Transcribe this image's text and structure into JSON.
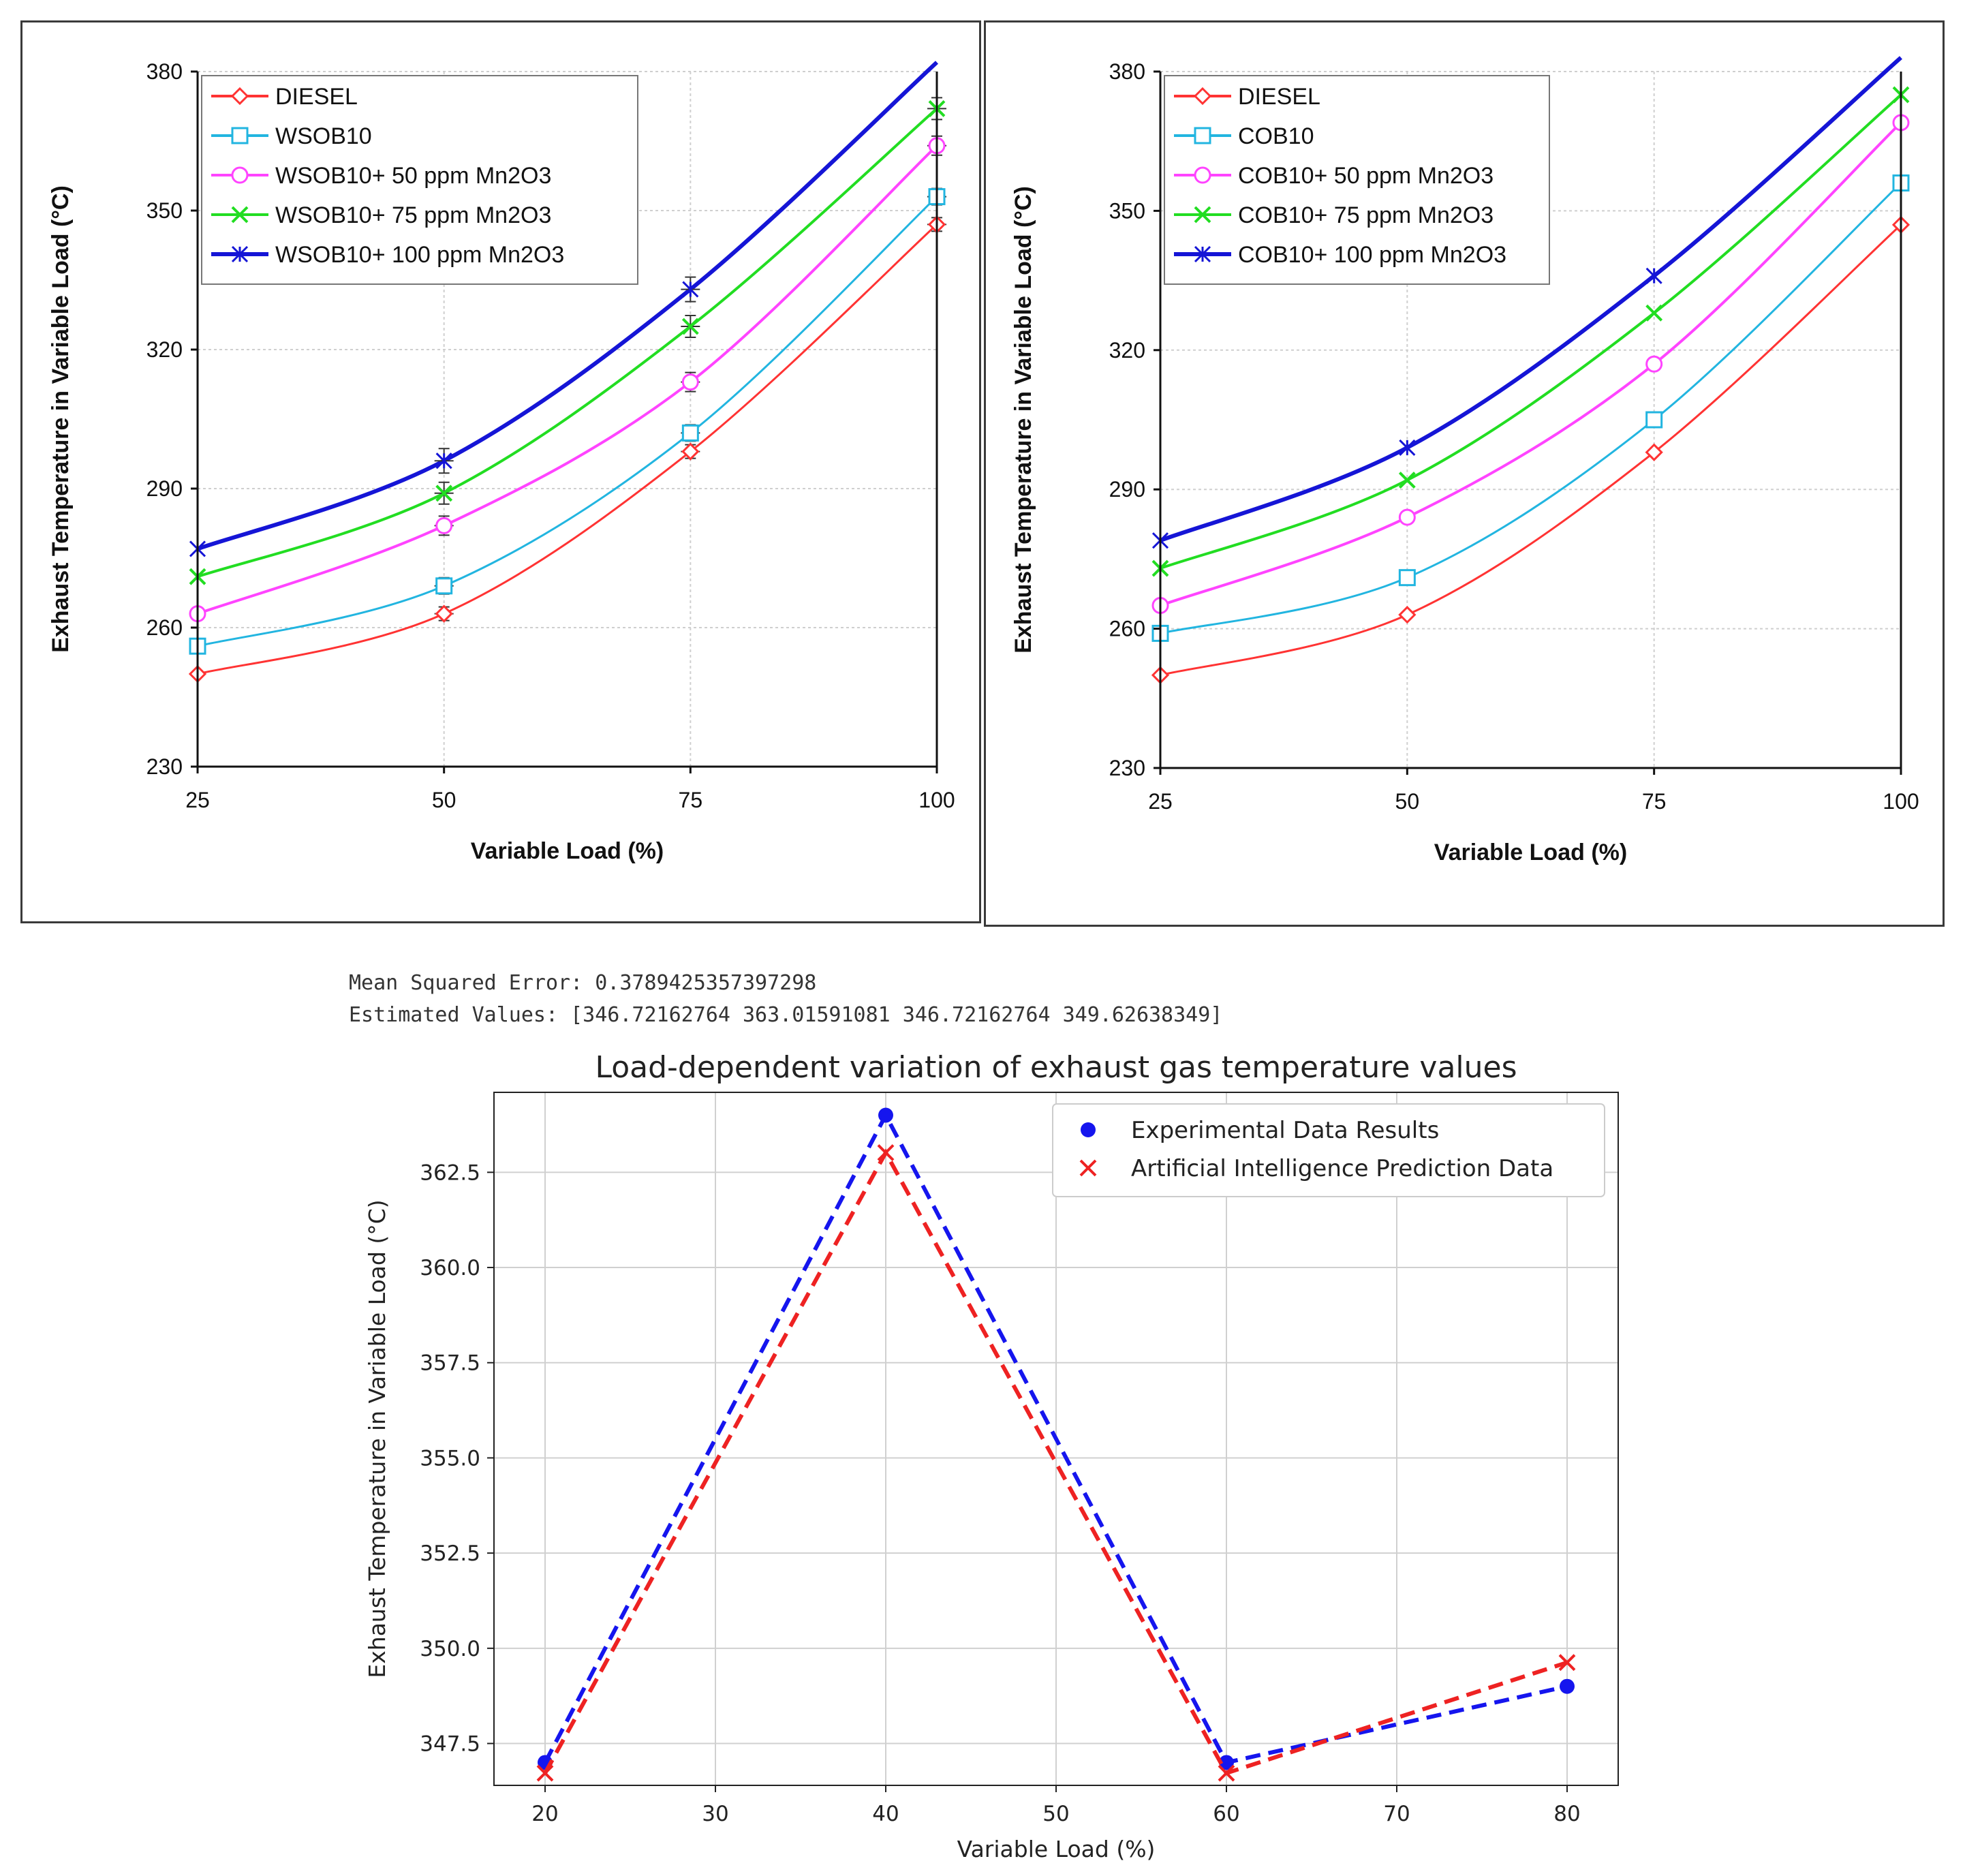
{
  "colors": {
    "diesel": "#ff3333",
    "b10": "#22b5e0",
    "mn50": "#ff44ff",
    "mn75": "#22dd22",
    "mn100": "#1515d6",
    "ai_blue": "#1515ee",
    "ai_red": "#ee2222"
  },
  "console": {
    "mse": "Mean Squared Error: 0.3789425357397298",
    "estimated": "Estimated Values: [346.72162764 363.01591081 346.72162764 349.62638349]"
  },
  "chart_data": [
    {
      "type": "line",
      "id": "wsob",
      "xlabel": "Variable Load (%)",
      "ylabel": "Exhaust Temperature in Variable Load (°C)",
      "xlim": [
        25,
        100
      ],
      "ylim": [
        230,
        380
      ],
      "x": [
        25,
        50,
        75,
        100
      ],
      "xticks": [
        "25",
        "50",
        "75",
        "100"
      ],
      "yticks": [
        "230",
        "260",
        "290",
        "320",
        "350",
        "380"
      ],
      "legend_position": "top-left",
      "error_bars": true,
      "series": [
        {
          "name": "DIESEL",
          "values": [
            250,
            263,
            298,
            347
          ],
          "color": "#ff3333",
          "marker": "diamond"
        },
        {
          "name": "WSOB10",
          "values": [
            256,
            269,
            302,
            353
          ],
          "color": "#22b5e0",
          "marker": "square"
        },
        {
          "name": "WSOB10+ 50 ppm Mn2O3",
          "values": [
            263,
            282,
            313,
            364
          ],
          "color": "#ff44ff",
          "marker": "circle"
        },
        {
          "name": "WSOB10+ 75 ppm Mn2O3",
          "values": [
            271,
            289,
            325,
            372
          ],
          "color": "#22dd22",
          "marker": "x"
        },
        {
          "name": "WSOB10+ 100 ppm Mn2O3",
          "values": [
            277,
            296,
            333,
            382
          ],
          "color": "#1515d6",
          "marker": "star"
        }
      ]
    },
    {
      "type": "line",
      "id": "cob",
      "xlabel": "Variable Load (%)",
      "ylabel": "Exhaust Temperature in Variable Load (°C)",
      "xlim": [
        25,
        100
      ],
      "ylim": [
        230,
        380
      ],
      "x": [
        25,
        50,
        75,
        100
      ],
      "xticks": [
        "25",
        "50",
        "75",
        "100"
      ],
      "yticks": [
        "230",
        "260",
        "290",
        "320",
        "350",
        "380"
      ],
      "legend_position": "top-left",
      "error_bars": false,
      "series": [
        {
          "name": "DIESEL",
          "values": [
            250,
            263,
            298,
            347
          ],
          "color": "#ff3333",
          "marker": "diamond"
        },
        {
          "name": "COB10",
          "values": [
            259,
            271,
            305,
            356
          ],
          "color": "#22b5e0",
          "marker": "square"
        },
        {
          "name": "COB10+ 50 ppm Mn2O3",
          "values": [
            265,
            284,
            317,
            369
          ],
          "color": "#ff44ff",
          "marker": "circle"
        },
        {
          "name": "COB10+ 75 ppm Mn2O3",
          "values": [
            273,
            292,
            328,
            375
          ],
          "color": "#22dd22",
          "marker": "x"
        },
        {
          "name": "COB10+ 100 ppm Mn2O3",
          "values": [
            279,
            299,
            336,
            383
          ],
          "color": "#1515d6",
          "marker": "star"
        }
      ]
    },
    {
      "type": "line",
      "id": "ai",
      "title": "Load-dependent variation of exhaust gas temperature values",
      "xlabel": "Variable Load (%)",
      "ylabel": "Exhaust Temperature in Variable Load (°C)",
      "xlim": [
        17,
        83
      ],
      "ylim": [
        346.4,
        364.6
      ],
      "xticks": [
        "20",
        "30",
        "40",
        "50",
        "60",
        "70",
        "80"
      ],
      "yticks": [
        "347.5",
        "350.0",
        "352.5",
        "355.0",
        "357.5",
        "360.0",
        "362.5"
      ],
      "grid": true,
      "legend_position": "top-right",
      "x": [
        20,
        40,
        60,
        80
      ],
      "series": [
        {
          "name": "Experimental Data Results",
          "values": [
            347,
            364,
            347,
            349
          ],
          "color": "#1515ee",
          "marker": "circle"
        },
        {
          "name": "Artificial Intelligence Prediction Data",
          "values": [
            346.72162764,
            363.01591081,
            346.72162764,
            349.62638349
          ],
          "color": "#ee2222",
          "marker": "x"
        }
      ]
    }
  ]
}
